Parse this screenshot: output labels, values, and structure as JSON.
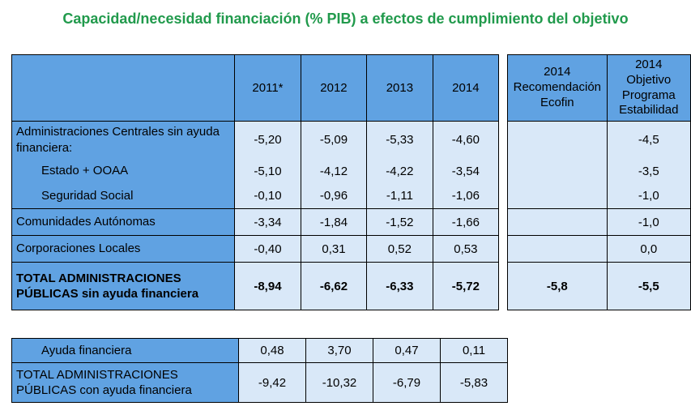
{
  "title": "Capacidad/necesidad financiación (% PIB) a efectos de cumplimiento del objetivo",
  "colors": {
    "title_green": "#219A4C",
    "header_blue": "#60A2E2",
    "cell_blue": "#D9E8F8",
    "border": "#000000"
  },
  "main_table": {
    "columns": [
      "2011*",
      "2012",
      "2013",
      "2014"
    ],
    "rows": [
      {
        "label": "Administraciones Centrales sin ayuda financiera:",
        "values": [
          "-5,20",
          "-5,09",
          "-5,33",
          "-4,60"
        ]
      },
      {
        "label": "Estado + OOAA",
        "values": [
          "-5,10",
          "-4,12",
          "-4,22",
          "-3,54"
        ]
      },
      {
        "label": "Seguridad Social",
        "values": [
          "-0,10",
          "-0,96",
          "-1,11",
          "-1,06"
        ]
      },
      {
        "label": "Comunidades Autónomas",
        "values": [
          "-3,34",
          "-1,84",
          "-1,52",
          "-1,66"
        ]
      },
      {
        "label": "Corporaciones Locales",
        "values": [
          "-0,40",
          "0,31",
          "0,52",
          "0,53"
        ]
      },
      {
        "label": "TOTAL ADMINISTRACIONES PÚBLICAS sin ayuda financiera",
        "values": [
          "-8,94",
          "-6,62",
          "-6,33",
          "-5,72"
        ]
      }
    ]
  },
  "right_table": {
    "columns": [
      "2014\nRecomendación\nEcofin",
      "2014\nObjetivo\nPrograma\nEstabilidad"
    ],
    "rows": [
      {
        "ecofin": "",
        "objetivo": "-4,5"
      },
      {
        "ecofin": "",
        "objetivo": "-3,5"
      },
      {
        "ecofin": "",
        "objetivo": "-1,0"
      },
      {
        "ecofin": "",
        "objetivo": "-1,0"
      },
      {
        "ecofin": "",
        "objetivo": "0,0"
      },
      {
        "ecofin": "-5,8",
        "objetivo": "-5,5"
      }
    ]
  },
  "bottom_table": {
    "rows": [
      {
        "label": "Ayuda financiera",
        "values": [
          "0,48",
          "3,70",
          "0,47",
          "0,11"
        ]
      },
      {
        "label": "TOTAL ADMINISTRACIONES PÚBLICAS con ayuda financiera",
        "values": [
          "-9,42",
          "-10,32",
          "-6,79",
          "-5,83"
        ]
      }
    ]
  }
}
